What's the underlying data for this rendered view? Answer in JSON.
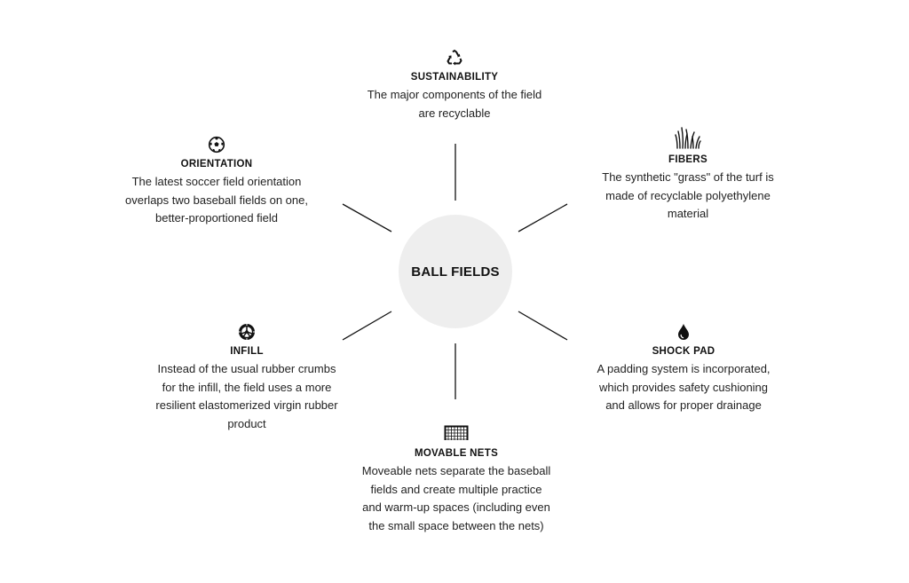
{
  "center": {
    "label": "BALL FIELDS"
  },
  "nodes": {
    "sustainability": {
      "icon": "recycle-icon",
      "title": "SUSTAINABILITY",
      "lines": [
        "The major components of the field",
        "are recyclable"
      ]
    },
    "fibers": {
      "icon": "grass-icon",
      "title": "FIBERS",
      "lines": [
        "The synthetic \"grass\" of the turf is",
        "made of recyclable polyethylene",
        "material"
      ]
    },
    "orientation": {
      "icon": "soccer-ball-icon",
      "title": "ORIENTATION",
      "lines": [
        "The latest soccer field orientation",
        "overlaps two baseball fields on one,",
        "better-proportioned field"
      ]
    },
    "shock_pad": {
      "icon": "water-drop-icon",
      "title": "SHOCK PAD",
      "lines": [
        "A padding system is incorporated,",
        "which provides safety cushioning",
        "and allows for proper drainage"
      ]
    },
    "infill": {
      "icon": "tire-icon",
      "title": "INFILL",
      "lines": [
        "Instead of the usual rubber crumbs",
        "for the infill, the field uses a more",
        "resilient elastomerized virgin rubber",
        "product"
      ]
    },
    "movable_nets": {
      "icon": "goal-net-icon",
      "title": "MOVABLE NETS",
      "lines": [
        "Moveable nets separate the baseball",
        "fields and create multiple practice",
        "and warm-up spaces (including even",
        "the small space between the nets)"
      ]
    }
  },
  "colors": {
    "hub_fill": "#eeeeee",
    "line": "#111111",
    "text": "#1a1a1a"
  }
}
